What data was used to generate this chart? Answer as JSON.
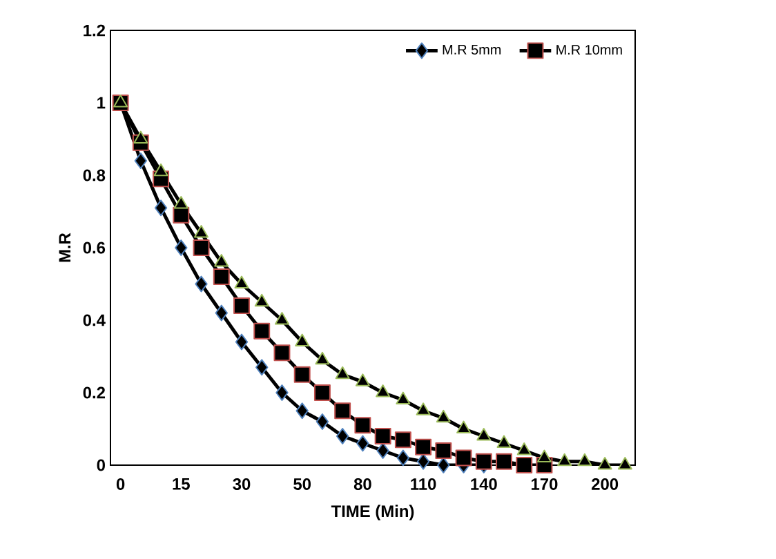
{
  "chart_data": {
    "type": "line",
    "xlabel": "TIME (Min)",
    "ylabel": "M.R",
    "categories": [
      "0",
      null,
      null,
      "15",
      null,
      null,
      "30",
      null,
      null,
      "50",
      null,
      null,
      "80",
      null,
      null,
      "110",
      null,
      null,
      "140",
      null,
      null,
      "170",
      null,
      null,
      "200",
      null
    ],
    "series": [
      {
        "name": "M.R 5mm",
        "color": "#4f81bd",
        "marker": "diamond",
        "values": [
          1.0,
          0.84,
          0.71,
          0.6,
          0.5,
          0.42,
          0.34,
          0.27,
          0.2,
          0.15,
          0.12,
          0.08,
          0.06,
          0.04,
          0.02,
          0.01,
          0,
          0,
          0,
          null,
          null,
          null,
          null,
          null,
          null,
          null
        ]
      },
      {
        "name": "M.R 10mm",
        "color": "#c0504d",
        "marker": "square",
        "values": [
          1.0,
          0.89,
          0.79,
          0.69,
          0.6,
          0.52,
          0.44,
          0.37,
          0.31,
          0.25,
          0.2,
          0.15,
          0.11,
          0.08,
          0.07,
          0.05,
          0.04,
          0.02,
          0.01,
          0.01,
          0,
          0,
          null,
          null,
          null,
          null
        ]
      },
      {
        "color": "#9bbb59",
        "marker": "triangle",
        "values": [
          1.0,
          0.9,
          0.81,
          0.72,
          0.64,
          0.56,
          0.5,
          0.45,
          0.4,
          0.34,
          0.29,
          0.25,
          0.23,
          0.2,
          0.18,
          0.15,
          0.13,
          0.1,
          0.08,
          0.06,
          0.04,
          0.02,
          0.01,
          0.01,
          0,
          0
        ]
      }
    ],
    "ylim": [
      0,
      1.2
    ],
    "yticks": [
      0,
      0.2,
      0.4,
      0.6,
      0.8,
      1,
      1.2
    ],
    "grid": false,
    "legend": "top right",
    "line_style": "solid"
  }
}
